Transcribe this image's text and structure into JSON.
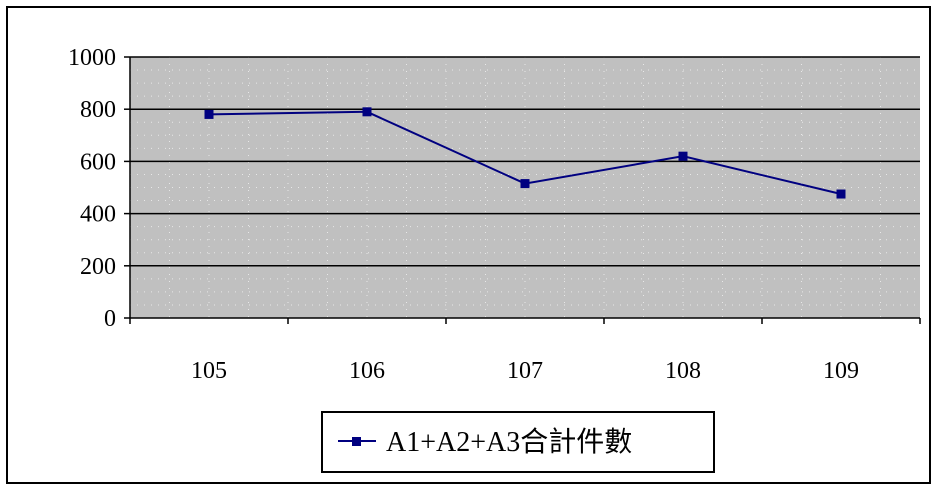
{
  "chart_data": {
    "type": "line",
    "categories": [
      "105",
      "106",
      "107",
      "108",
      "109"
    ],
    "series": [
      {
        "name": "A1+A2+A3合計件數",
        "values": [
          780,
          790,
          515,
          620,
          475
        ]
      }
    ],
    "ylim": [
      0,
      1000
    ],
    "yticks": [
      0,
      200,
      400,
      600,
      800,
      1000
    ],
    "ytick_labels": [
      "0",
      "200",
      "400",
      "600",
      "800",
      "1000"
    ],
    "grid": true,
    "legend": "bottom",
    "colors": {
      "series": "#000080",
      "plot_bg": "#c0c0c0",
      "gridline": "#000000"
    }
  }
}
